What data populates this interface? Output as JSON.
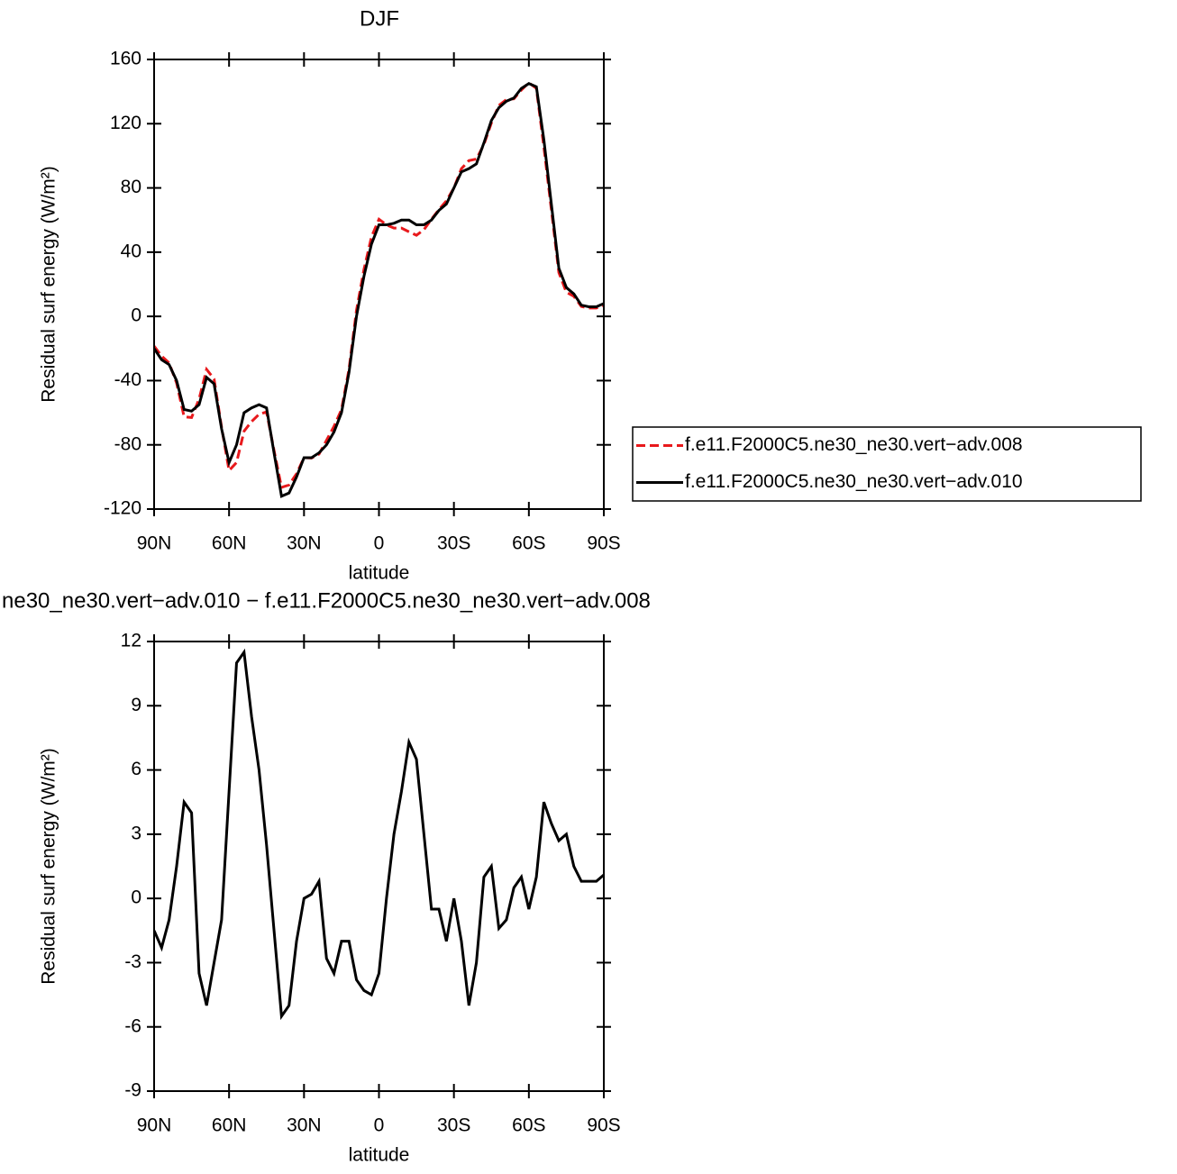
{
  "chart_data": [
    {
      "type": "line",
      "title": "DJF",
      "xlabel": "latitude",
      "ylabel": "Residual surf energy (W/m²)",
      "x": [
        90,
        87,
        84,
        81,
        78,
        75,
        72,
        69,
        66,
        63,
        60,
        57,
        54,
        51,
        48,
        45,
        42,
        39,
        36,
        33,
        30,
        27,
        24,
        21,
        18,
        15,
        12,
        9,
        6,
        3,
        0,
        -3,
        -6,
        -9,
        -12,
        -15,
        -18,
        -21,
        -24,
        -27,
        -30,
        -33,
        -36,
        -39,
        -42,
        -45,
        -48,
        -51,
        -54,
        -57,
        -60,
        -63,
        -66,
        -69,
        -72,
        -75,
        -78,
        -81,
        -84,
        -87,
        -90
      ],
      "series": [
        {
          "name": "f.e11.F2000C5.ne30_ne30.vert−adv.008",
          "color": "#e8191c",
          "style": "dashed",
          "values": [
            -18.5,
            -24.7,
            -29,
            -41.5,
            -62.5,
            -63,
            -51.5,
            -33,
            -39,
            -69,
            -96,
            -91,
            -71.5,
            -65.5,
            -61,
            -59.5,
            -83.5,
            -106.5,
            -105,
            -98,
            -88,
            -88.2,
            -85.8,
            -77.2,
            -68.5,
            -58,
            -33,
            3.8,
            29.3,
            49.5,
            60.5,
            57,
            55,
            55,
            52.7,
            50.5,
            54,
            60.5,
            66.5,
            72,
            80,
            92,
            97,
            98,
            107,
            120.5,
            131.4,
            135,
            135.5,
            141,
            145.5,
            142,
            105.5,
            66.5,
            27.3,
            15,
            12.5,
            6.2,
            5.2,
            5.2,
            6.9
          ]
        },
        {
          "name": "f.e11.F2000C5.ne30_ne30.vert−adv.010",
          "color": "#000000",
          "style": "solid",
          "values": [
            -20,
            -27,
            -30,
            -40,
            -58,
            -59,
            -55,
            -38,
            -42,
            -70,
            -91,
            -80,
            -60,
            -57,
            -55,
            -57,
            -85,
            -112,
            -110,
            -100,
            -88,
            -88,
            -85,
            -80,
            -72,
            -60,
            -35,
            0,
            25,
            45,
            57,
            57,
            58,
            60,
            60,
            57,
            57,
            60,
            66,
            70,
            80,
            90,
            92,
            95,
            108,
            122,
            130,
            134,
            136,
            142,
            145,
            143,
            110,
            70,
            30,
            18,
            14,
            7,
            6,
            6,
            8
          ]
        }
      ],
      "xlim": [
        90,
        -90
      ],
      "xticks": [
        {
          "value": 90,
          "label": "90N"
        },
        {
          "value": 60,
          "label": "60N"
        },
        {
          "value": 30,
          "label": "30N"
        },
        0,
        {
          "value": -30,
          "label": "30S"
        },
        {
          "value": -60,
          "label": "60S"
        },
        {
          "value": -90,
          "label": "90S"
        }
      ],
      "ylim": [
        -120,
        160
      ],
      "yticks": [
        160,
        120,
        80,
        40,
        0,
        -40,
        -80,
        -120
      ]
    },
    {
      "type": "line",
      "title": "ne30_ne30.vert−adv.010 − f.e11.F2000C5.ne30_ne30.vert−adv.008",
      "xlabel": "latitude",
      "ylabel": "Residual surf energy (W/m²)",
      "x": [
        90,
        87,
        84,
        81,
        78,
        75,
        72,
        69,
        66,
        63,
        60,
        57,
        54,
        51,
        48,
        45,
        42,
        39,
        36,
        33,
        30,
        27,
        24,
        21,
        18,
        15,
        12,
        9,
        6,
        3,
        0,
        -3,
        -6,
        -9,
        -12,
        -15,
        -18,
        -21,
        -24,
        -27,
        -30,
        -33,
        -36,
        -39,
        -42,
        -45,
        -48,
        -51,
        -54,
        -57,
        -60,
        -63,
        -66,
        -69,
        -72,
        -75,
        -78,
        -81,
        -84,
        -87,
        -90
      ],
      "series": [
        {
          "color": "#000000",
          "style": "solid",
          "values": [
            -1.5,
            -2.3,
            -1,
            1.5,
            4.5,
            4,
            -3.5,
            -5,
            -3,
            -1,
            5,
            11,
            11.5,
            8.5,
            6,
            2.5,
            -1.5,
            -5.5,
            -5,
            -2,
            0,
            0.2,
            0.8,
            -2.8,
            -3.5,
            -2,
            -2,
            -3.8,
            -4.3,
            -4.5,
            -3.5,
            0,
            3,
            5,
            7.3,
            6.5,
            3,
            -0.5,
            -0.5,
            -2,
            0,
            -2,
            -5,
            -3,
            1,
            1.5,
            -1.4,
            -1,
            0.5,
            1,
            -0.5,
            1,
            4.5,
            3.5,
            2.7,
            3,
            1.5,
            0.8,
            0.8,
            0.8,
            1.1
          ]
        }
      ],
      "xlim": [
        90,
        -90
      ],
      "xticks": [
        {
          "value": 90,
          "label": "90N"
        },
        {
          "value": 60,
          "label": "60N"
        },
        {
          "value": 30,
          "label": "30N"
        },
        0,
        {
          "value": -30,
          "label": "30S"
        },
        {
          "value": -60,
          "label": "60S"
        },
        {
          "value": -90,
          "label": "90S"
        }
      ],
      "ylim": [
        -9,
        12
      ],
      "yticks": [
        12,
        9,
        6,
        3,
        0,
        -3,
        -6,
        -9
      ]
    }
  ]
}
